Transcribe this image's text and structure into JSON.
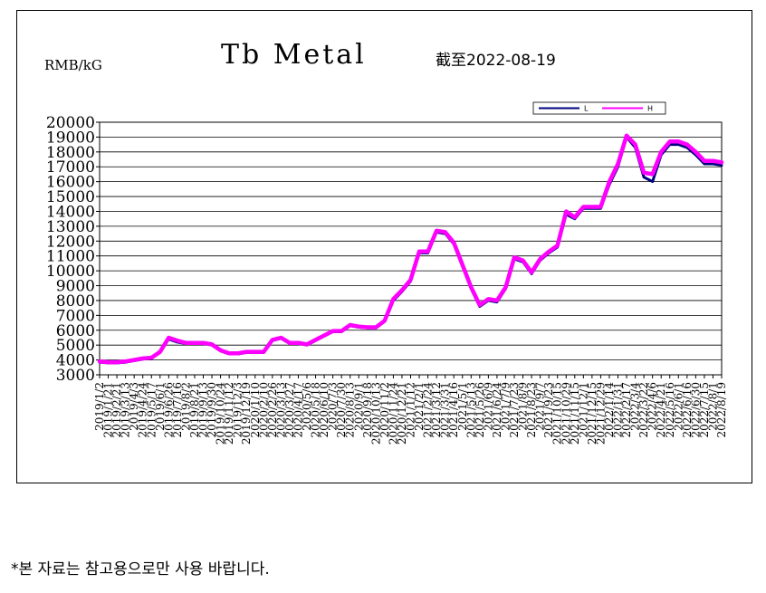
{
  "chart_data": {
    "type": "line",
    "title": "Tb Metal",
    "subtitle": "截至2022-08-19",
    "ylabel": "RMB/kG",
    "ylim": [
      3000,
      20000
    ],
    "yticks": [
      3000,
      4000,
      5000,
      6000,
      7000,
      8000,
      9000,
      10000,
      11000,
      12000,
      13000,
      14000,
      15000,
      16000,
      17000,
      18000,
      19000,
      20000
    ],
    "grid": true,
    "legend_position": "top-right",
    "x_tick_labels": [
      "2019/1/2",
      "2019/1/21",
      "2019/2/21",
      "2019/3/13",
      "2019/4/3",
      "2019/4/24",
      "2019/5/17",
      "2019/6/1",
      "2019/6/26",
      "2019/7/16",
      "2019/8/2",
      "2019/8/21",
      "2019/9/13",
      "2019/9/30",
      "2019/10/24",
      "2019/11/12",
      "2019/12/3",
      "2019/12/19",
      "2020/1/10",
      "2020/2/10",
      "2020/2/26",
      "2020/3/13",
      "2020/3/27",
      "2020/4/17",
      "2020/5/6",
      "2020/5/18",
      "2020/6/10",
      "2020/7/3",
      "2020/7/30",
      "2020/8/13",
      "2020/9/1",
      "2020/9/18",
      "2020/10/13",
      "2020/11/2",
      "2020/11/24",
      "2020/12/21",
      "2021/1/12",
      "2021/2/1",
      "2021/2/24",
      "2021/3/12",
      "2021/3/31",
      "2021/4/16",
      "2021/5/1",
      "2021/5/13",
      "2021/5/26",
      "2021/6/9",
      "2021/6/24",
      "2021/7/9",
      "2021/7/23",
      "2021/8/9",
      "2021/8/23",
      "2021/9/7",
      "2021/9/23",
      "2021/10/15",
      "2021/10/29",
      "2021/11/15",
      "2021/12/1",
      "2021/12/15",
      "2021/12/29",
      "2022/1/14",
      "2022/1/31",
      "2022/2/17",
      "2022/3/4",
      "2022/3/22",
      "2022/4/6",
      "2022/4/21",
      "2022/5/16",
      "2022/6/1",
      "2022/6/16",
      "2022/6/30",
      "2022/7/15",
      "2022/8/1",
      "2022/8/19"
    ],
    "x": [
      0,
      1,
      2,
      3,
      4,
      5,
      6,
      7,
      8,
      9,
      10,
      11,
      12,
      13,
      14,
      15,
      16,
      17,
      18,
      19,
      20,
      21,
      22,
      23,
      24,
      25,
      26,
      27,
      28,
      29,
      30,
      31,
      32,
      33,
      34,
      35,
      36,
      37,
      38,
      39,
      40,
      41,
      42,
      43,
      44,
      45,
      46,
      47,
      48,
      49,
      50,
      51,
      52,
      53,
      54,
      55,
      56,
      57,
      58,
      59,
      60,
      61,
      62,
      63,
      64,
      65,
      66,
      67,
      68,
      69,
      70,
      71,
      72
    ],
    "series": [
      {
        "name": "L",
        "color": "#000080",
        "values": [
          3850,
          3800,
          3800,
          3850,
          3950,
          4050,
          4100,
          4500,
          5400,
          5200,
          5100,
          5100,
          5100,
          5000,
          4600,
          4400,
          4400,
          4500,
          4500,
          4500,
          5300,
          5450,
          5100,
          5100,
          5000,
          5300,
          5600,
          5900,
          5900,
          6300,
          6200,
          6150,
          6150,
          6600,
          8000,
          8600,
          9300,
          11200,
          11200,
          12600,
          12500,
          11800,
          10300,
          8800,
          7600,
          8000,
          7900,
          8800,
          10800,
          10600,
          9800,
          10700,
          11200,
          11600,
          13800,
          13500,
          14200,
          14200,
          14200,
          15800,
          17000,
          19000,
          18300,
          16300,
          16000,
          17800,
          18500,
          18500,
          18300,
          17800,
          17200,
          17200,
          17100
        ]
      },
      {
        "name": "H",
        "color": "#ff00ff",
        "values": [
          3900,
          3850,
          3850,
          3900,
          4000,
          4100,
          4150,
          4550,
          5500,
          5300,
          5150,
          5150,
          5150,
          5050,
          4650,
          4450,
          4450,
          4550,
          4550,
          4550,
          5350,
          5500,
          5150,
          5150,
          5050,
          5350,
          5650,
          5950,
          5950,
          6350,
          6250,
          6200,
          6200,
          6650,
          8100,
          8700,
          9400,
          11300,
          11300,
          12700,
          12600,
          11900,
          10400,
          8900,
          7700,
          8100,
          8000,
          8900,
          10900,
          10700,
          9900,
          10800,
          11300,
          11700,
          14000,
          13600,
          14300,
          14300,
          14300,
          16000,
          17200,
          19100,
          18500,
          16600,
          16500,
          18000,
          18700,
          18700,
          18500,
          18000,
          17400,
          17400,
          17300
        ]
      }
    ]
  },
  "footer": {
    "disclaimer": "*본 자료는 참고용으로만 사용 바랍니다."
  }
}
